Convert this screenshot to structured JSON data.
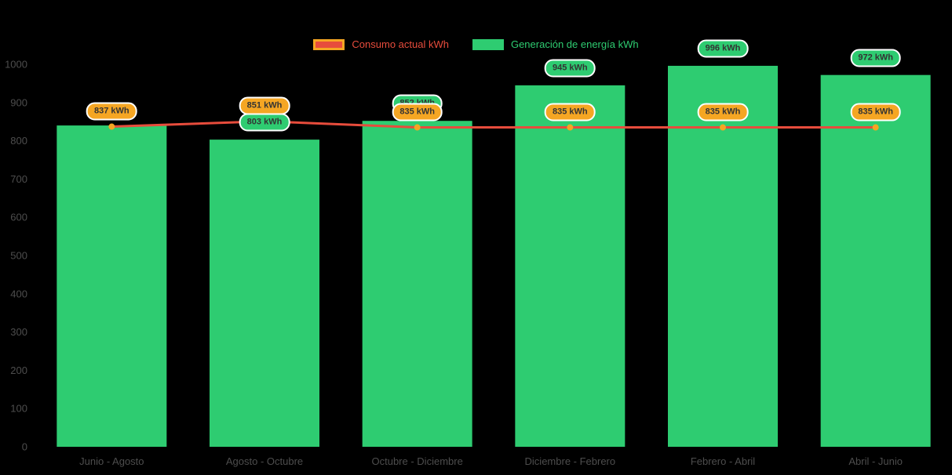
{
  "background_color": "#000000",
  "legend": {
    "items": [
      {
        "id": "consumo",
        "label": "Consumo actual kWh",
        "swatch_fill": "#e74c3c",
        "swatch_border": "#f5a623",
        "label_color": "#e74c3c"
      },
      {
        "id": "generacion",
        "label": "Generación de energía kWh",
        "swatch_fill": "#2ecc71",
        "swatch_border": "#2ecc71",
        "label_color": "#2ecc71"
      }
    ]
  },
  "chart_data": {
    "type": "bar",
    "title": "",
    "categories": [
      "Junio - Agosto",
      "Agosto - Octubre",
      "Octubre - Diciembre",
      "Diciembre - Febrero",
      "Febrero - Abril",
      "Abril - Junio"
    ],
    "series": [
      {
        "name": "Generación de energía kWh",
        "type": "bar",
        "color": "#2ecc71",
        "values": [
          840,
          803,
          852,
          945,
          996,
          972
        ],
        "data_labels": [
          "",
          "803 kWh",
          "852 kWh",
          "945 kWh",
          "996 kWh",
          "972 kWh"
        ],
        "label_style": {
          "fill": "#2ecc71",
          "border": "#ffffff",
          "text": "#333333"
        }
      },
      {
        "name": "Consumo actual kWh",
        "type": "line",
        "color": "#e74c3c",
        "point_color": "#f5a623",
        "values": [
          837,
          851,
          835,
          835,
          835,
          835
        ],
        "data_labels": [
          "837 kWh",
          "851 kWh",
          "835 kWh",
          "835 kWh",
          "835 kWh",
          "835 kWh"
        ],
        "label_style": {
          "fill": "#f5a623",
          "border": "#ffffff",
          "text": "#333333"
        }
      }
    ],
    "ylim": [
      0,
      1000
    ],
    "y_ticks": [
      0,
      100,
      200,
      300,
      400,
      500,
      600,
      700,
      800,
      900,
      1000
    ],
    "axis_text_color": "#4d4d4d",
    "grid": false,
    "legend_position": "top"
  }
}
